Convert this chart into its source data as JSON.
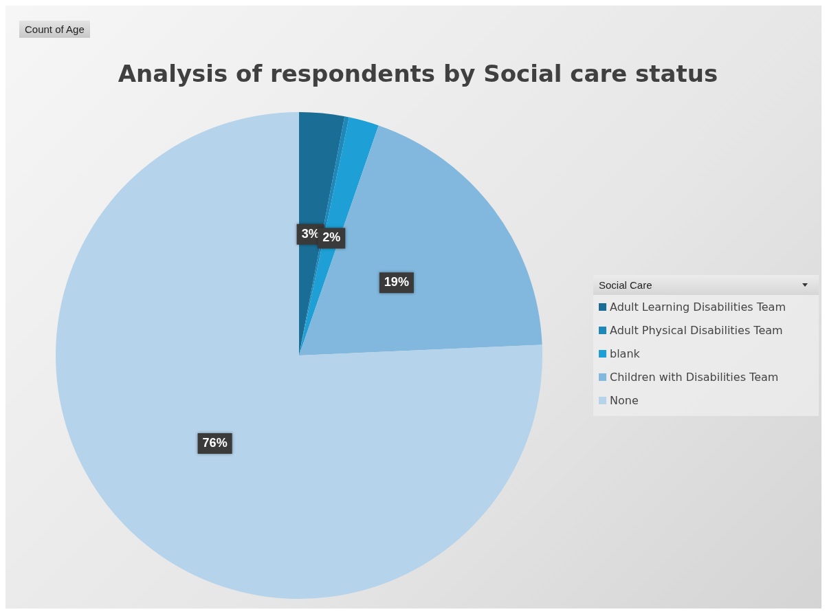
{
  "chart_data": {
    "type": "pie",
    "title": "Analysis of respondents by Social care status",
    "legend_title": "Social Care",
    "annotations": [
      "Count of Age"
    ],
    "categories": [
      "Adult Learning Disabilities Team",
      "Adult Physical Disabilities Team",
      "blank",
      "Children with Disabilities Team",
      "None"
    ],
    "values": [
      3,
      0.3,
      2,
      19,
      75.7
    ],
    "colors": [
      "#1a6e96",
      "#1f88b8",
      "#1ea0d6",
      "#82b8de",
      "#b5d3ea"
    ],
    "value_labels": [
      "3%",
      null,
      "2%",
      "19%",
      "76%"
    ],
    "legend": "right"
  }
}
